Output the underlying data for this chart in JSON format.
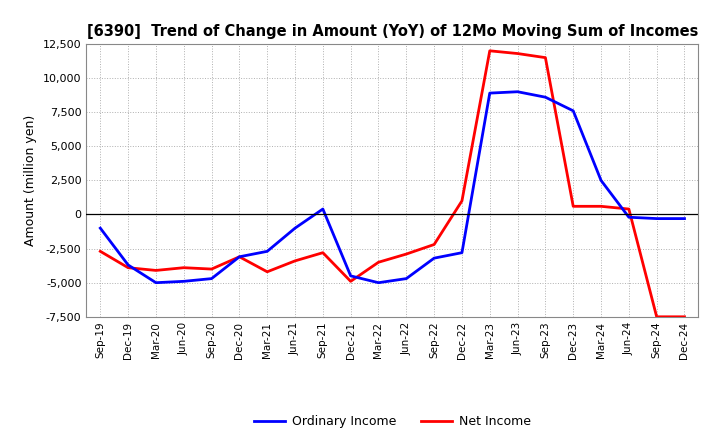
{
  "title": "[6390]  Trend of Change in Amount (YoY) of 12Mo Moving Sum of Incomes",
  "ylabel": "Amount (million yen)",
  "ylim": [
    -7500,
    12500
  ],
  "yticks": [
    -7500,
    -5000,
    -2500,
    0,
    2500,
    5000,
    7500,
    10000,
    12500
  ],
  "x_labels": [
    "Sep-19",
    "Dec-19",
    "Mar-20",
    "Jun-20",
    "Sep-20",
    "Dec-20",
    "Mar-21",
    "Jun-21",
    "Sep-21",
    "Dec-21",
    "Mar-22",
    "Jun-22",
    "Sep-22",
    "Dec-22",
    "Mar-23",
    "Jun-23",
    "Sep-23",
    "Dec-23",
    "Mar-24",
    "Jun-24",
    "Sep-24",
    "Dec-24"
  ],
  "ordinary_income": [
    -1000,
    -3700,
    -5000,
    -4900,
    -4700,
    -3100,
    -2700,
    -1000,
    400,
    -4500,
    -5000,
    -4700,
    -3200,
    -2800,
    8900,
    9000,
    8600,
    7600,
    2500,
    -200,
    -300,
    -300
  ],
  "net_income": [
    -2700,
    -3900,
    -4100,
    -3900,
    -4000,
    -3100,
    -4200,
    -3400,
    -2800,
    -4900,
    -3500,
    -2900,
    -2200,
    1000,
    12000,
    11800,
    11500,
    600,
    600,
    400,
    -7500,
    -7500
  ],
  "ordinary_color": "#0000ff",
  "net_color": "#ff0000",
  "line_width": 2.0,
  "background_color": "#ffffff",
  "grid_color": "#b0b0b0",
  "legend_labels": [
    "Ordinary Income",
    "Net Income"
  ]
}
